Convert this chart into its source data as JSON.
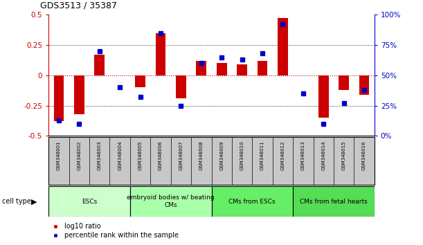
{
  "title": "GDS3513 / 35387",
  "samples": [
    "GSM348001",
    "GSM348002",
    "GSM348003",
    "GSM348004",
    "GSM348005",
    "GSM348006",
    "GSM348007",
    "GSM348008",
    "GSM348009",
    "GSM348010",
    "GSM348011",
    "GSM348012",
    "GSM348013",
    "GSM348014",
    "GSM348015",
    "GSM348016"
  ],
  "log10_ratio": [
    -0.38,
    -0.32,
    0.17,
    0.0,
    -0.1,
    0.35,
    -0.19,
    0.12,
    0.1,
    0.09,
    0.12,
    0.47,
    0.0,
    -0.35,
    -0.12,
    -0.16
  ],
  "percentile_rank": [
    13,
    10,
    70,
    40,
    32,
    85,
    25,
    60,
    65,
    63,
    68,
    92,
    35,
    10,
    27,
    38
  ],
  "ylim_left": [
    -0.5,
    0.5
  ],
  "ylim_right": [
    0,
    100
  ],
  "yticks_left": [
    -0.5,
    -0.25,
    0,
    0.25,
    0.5
  ],
  "yticks_right": [
    0,
    25,
    50,
    75,
    100
  ],
  "bar_color": "#cc0000",
  "dot_color": "#0000cc",
  "zero_line_color": "#cc0000",
  "dotted_lines": [
    -0.25,
    0.0,
    0.25
  ],
  "cell_groups": [
    {
      "label": "ESCs",
      "start": 0,
      "end": 4,
      "color": "#ccffcc"
    },
    {
      "label": "embryoid bodies w/ beating\nCMs",
      "start": 4,
      "end": 8,
      "color": "#aaffaa"
    },
    {
      "label": "CMs from ESCs",
      "start": 8,
      "end": 12,
      "color": "#66ee66"
    },
    {
      "label": "CMs from fetal hearts",
      "start": 12,
      "end": 16,
      "color": "#55dd55"
    }
  ],
  "cell_type_label": "cell type",
  "legend_bar_label": "log10 ratio",
  "legend_dot_label": "percentile rank within the sample",
  "background_color": "#ffffff",
  "sample_box_color": "#c8c8c8",
  "figsize": [
    6.11,
    3.54
  ],
  "dpi": 100
}
